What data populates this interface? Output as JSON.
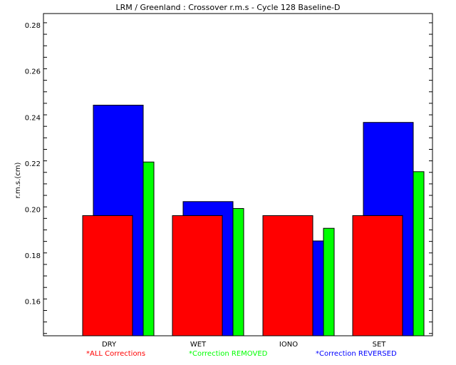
{
  "chart_data": {
    "type": "bar",
    "title": "LRM / Greenland : Crossover r.m.s - Cycle 128 Baseline-D",
    "ylabel": "r.m.s.(cm)",
    "xlabel": "",
    "categories": [
      "DRY",
      "WET",
      "IONO",
      "SET"
    ],
    "ylim": [
      0.145,
      0.285
    ],
    "yticks": [
      "0.16",
      "0.18",
      "0.20",
      "0.22",
      "0.24",
      "0.26",
      "0.28"
    ],
    "grid": false,
    "series": [
      {
        "name": "Correction REMOVED",
        "color": "#00ff00",
        "values": [
          0.2205,
          0.2003,
          0.1917,
          0.2163
        ]
      },
      {
        "name": "Correction REVERSED",
        "color": "#0000ff",
        "values": [
          0.2452,
          0.2033,
          0.1862,
          0.2377
        ]
      },
      {
        "name": "ALL Corrections",
        "color": "#ff0000",
        "values": [
          0.1972,
          0.1972,
          0.1972,
          0.1972
        ]
      }
    ],
    "legend": [
      {
        "marker": "*",
        "label": "ALL Corrections",
        "color": "#ff0000"
      },
      {
        "marker": "*",
        "label": "Correction REMOVED",
        "color": "#00ff00"
      },
      {
        "marker": "*",
        "label": "Correction REVERSED",
        "color": "#0000ff"
      }
    ]
  }
}
